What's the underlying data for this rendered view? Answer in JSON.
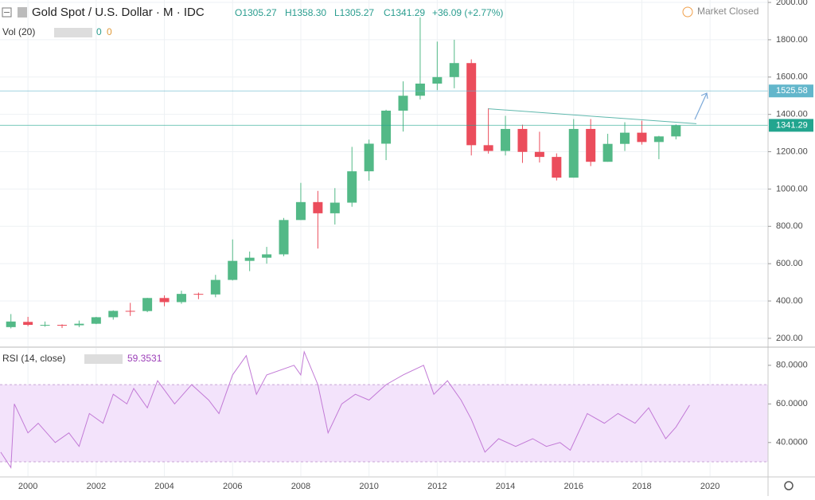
{
  "header": {
    "title": "Gold Spot / U.S. Dollar · M · IDC",
    "ohlc": [
      "O1305.27",
      "H1358.30",
      "L1305.27",
      "C1341.29",
      "+36.09 (+2.77%)"
    ],
    "volume_label": "Vol (20)",
    "volume_values": [
      "0",
      "0"
    ],
    "status": "Market Closed"
  },
  "chart_data": [
    {
      "type": "candlestick",
      "x": [
        1999.5,
        2000.0,
        2000.5,
        2001.0,
        2001.5,
        2002.0,
        2002.5,
        2003.0,
        2003.5,
        2004.0,
        2004.5,
        2005.0,
        2005.5,
        2006.0,
        2006.5,
        2007.0,
        2007.5,
        2008.0,
        2008.5,
        2009.0,
        2009.5,
        2010.0,
        2010.5,
        2011.0,
        2011.5,
        2012.0,
        2012.5,
        2013.0,
        2013.5,
        2014.0,
        2014.5,
        2015.0,
        2015.5,
        2016.0,
        2016.5,
        2017.0,
        2017.5,
        2018.0,
        2018.5,
        2019.0
      ],
      "open": [
        260,
        288,
        272,
        272,
        270,
        278,
        313,
        347,
        346,
        416,
        394,
        438,
        435,
        513,
        615,
        632,
        650,
        834,
        930,
        870,
        927,
        1095,
        1243,
        1420,
        1500,
        1565,
        1600,
        1675,
        1235,
        1204,
        1322,
        1199,
        1172,
        1061,
        1322,
        1146,
        1242,
        1302,
        1252,
        1282
      ],
      "high": [
        330,
        315,
        290,
        275,
        295,
        315,
        350,
        390,
        417,
        430,
        455,
        445,
        540,
        730,
        665,
        690,
        845,
        1033,
        990,
        1005,
        1226,
        1265,
        1425,
        1577,
        1920,
        1790,
        1800,
        1695,
        1433,
        1392,
        1345,
        1307,
        1191,
        1375,
        1375,
        1296,
        1358,
        1366,
        1285,
        1346
      ],
      "low": [
        253,
        265,
        262,
        255,
        260,
        276,
        300,
        320,
        340,
        372,
        385,
        410,
        420,
        510,
        560,
        600,
        640,
        834,
        681,
        810,
        905,
        1045,
        1155,
        1308,
        1480,
        1530,
        1540,
        1180,
        1190,
        1180,
        1140,
        1142,
        1046,
        1061,
        1123,
        1146,
        1204,
        1238,
        1160,
        1266
      ],
      "close": [
        290,
        272,
        272,
        270,
        278,
        313,
        347,
        346,
        416,
        394,
        438,
        435,
        513,
        615,
        632,
        650,
        834,
        930,
        870,
        927,
        1095,
        1243,
        1420,
        1500,
        1565,
        1600,
        1675,
        1235,
        1204,
        1322,
        1199,
        1172,
        1061,
        1322,
        1146,
        1242,
        1302,
        1252,
        1282,
        1341
      ],
      "up_color": "#53b987",
      "down_color": "#eb4d5c",
      "xlim": [
        1999.18,
        2021.7
      ],
      "ylim": [
        157,
        2013
      ],
      "yticks": [
        {
          "value": 200,
          "label": "200.00"
        },
        {
          "value": 400,
          "label": "400.00"
        },
        {
          "value": 600,
          "label": "600.00"
        },
        {
          "value": 800,
          "label": "800.00"
        },
        {
          "value": 1000,
          "label": "1000.00"
        },
        {
          "value": 1200,
          "label": "1200.00"
        },
        {
          "value": 1400,
          "label": "1400.00"
        },
        {
          "value": 1600,
          "label": "1600.00"
        },
        {
          "value": 1800,
          "label": "1800.00"
        },
        {
          "value": 2000,
          "label": "2000.00"
        }
      ],
      "xticks": [
        2000,
        2002,
        2004,
        2006,
        2008,
        2010,
        2012,
        2014,
        2016,
        2018,
        2020
      ],
      "levels": [
        {
          "value": 1525.58,
          "color": "#62b6cb"
        },
        {
          "value": 1341.29,
          "color": "#22a58f"
        }
      ],
      "trendline": {
        "x": [
          2013.5,
          2019.6
        ],
        "y": [
          1430,
          1350
        ],
        "color": "#5fb8ad"
      },
      "grid": true
    },
    {
      "type": "line",
      "title": "RSI (14, close)",
      "last_value": "59.3531",
      "x": [
        1999.2,
        1999.5,
        1999.6,
        2000.0,
        2000.3,
        2000.8,
        2001.2,
        2001.5,
        2001.8,
        2002.2,
        2002.5,
        2002.9,
        2003.1,
        2003.5,
        2003.8,
        2004.3,
        2004.8,
        2005.3,
        2005.6,
        2006.0,
        2006.4,
        2006.7,
        2007.0,
        2007.8,
        2008.0,
        2008.1,
        2008.5,
        2008.8,
        2009.2,
        2009.6,
        2010.0,
        2010.5,
        2011.0,
        2011.6,
        2011.9,
        2012.3,
        2012.7,
        2013.0,
        2013.4,
        2013.8,
        2014.3,
        2014.8,
        2015.2,
        2015.6,
        2015.9,
        2016.4,
        2016.9,
        2017.3,
        2017.8,
        2018.2,
        2018.7,
        2019.0,
        2019.4
      ],
      "values": [
        35,
        27,
        60,
        45,
        50,
        40,
        45,
        38,
        55,
        50,
        65,
        60,
        68,
        58,
        72,
        60,
        70,
        62,
        55,
        75,
        85,
        65,
        75,
        80,
        75,
        87,
        70,
        45,
        60,
        65,
        62,
        70,
        75,
        80,
        65,
        72,
        62,
        52,
        35,
        42,
        38,
        42,
        38,
        40,
        36,
        55,
        50,
        55,
        50,
        58,
        42,
        48,
        59.35
      ],
      "color": "#c27ad6",
      "band": [
        30,
        70
      ],
      "band_color": "#f3e3fb",
      "ylim": [
        22.6,
        89
      ],
      "yticks": [
        {
          "value": 40,
          "label": "40.0000"
        },
        {
          "value": 60,
          "label": "60.0000"
        },
        {
          "value": 80,
          "label": "80.0000"
        }
      ]
    }
  ]
}
